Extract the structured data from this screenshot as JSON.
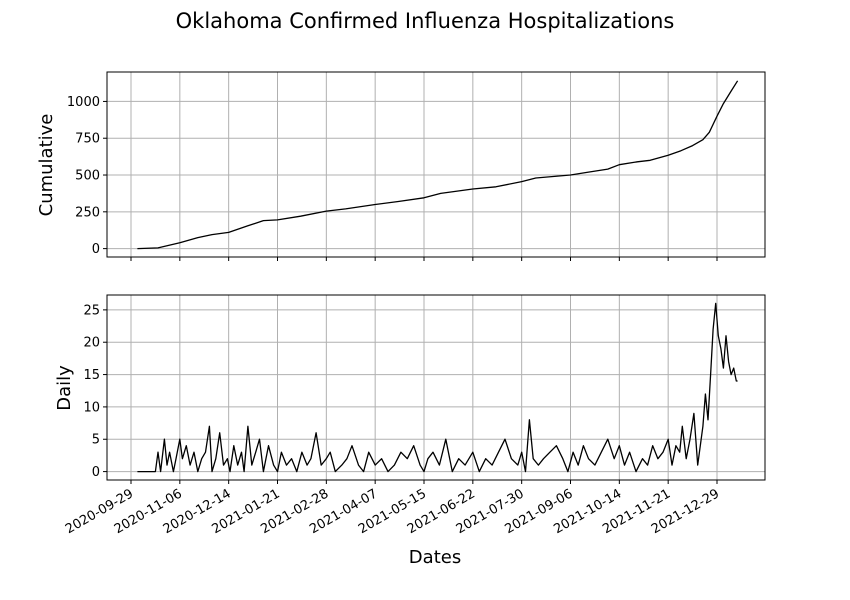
{
  "chart_data": {
    "title": "Oklahoma Confirmed Influenza Hospitalizations",
    "xlabel": "Dates",
    "x_ticks": [
      "2020-09-29",
      "2020-11-06",
      "2020-12-14",
      "2021-01-21",
      "2021-02-28",
      "2021-04-07",
      "2021-05-15",
      "2021-06-22",
      "2021-07-30",
      "2021-09-06",
      "2021-10-14",
      "2021-11-21",
      "2021-12-29"
    ],
    "grid": true,
    "panels": [
      {
        "type": "line",
        "ylabel": "Cumulative",
        "y_ticks": [
          0,
          250,
          500,
          750,
          1000
        ],
        "ylim": [
          -57,
          1200
        ],
        "series": [
          {
            "x": [
              "2020-10-04",
              "2020-10-20",
              "2020-11-06",
              "2020-11-20",
              "2020-12-01",
              "2020-12-14",
              "2020-12-29",
              "2021-01-10",
              "2021-01-21",
              "2021-02-08",
              "2021-02-28",
              "2021-03-15",
              "2021-04-07",
              "2021-04-25",
              "2021-05-15",
              "2021-05-28",
              "2021-06-22",
              "2021-07-10",
              "2021-07-30",
              "2021-08-10",
              "2021-09-06",
              "2021-09-20",
              "2021-10-05",
              "2021-10-14",
              "2021-10-28",
              "2021-11-07",
              "2021-11-21",
              "2021-12-01",
              "2021-12-10",
              "2021-12-18",
              "2021-12-23",
              "2021-12-29",
              "2022-01-03",
              "2022-01-09",
              "2022-01-14"
            ],
            "y": [
              0,
              5,
              40,
              75,
              95,
              110,
              155,
              190,
              195,
              220,
              255,
              270,
              300,
              320,
              345,
              375,
              405,
              420,
              455,
              480,
              500,
              520,
              540,
              570,
              590,
              600,
              635,
              665,
              700,
              740,
              790,
              900,
              985,
              1070,
              1140
            ]
          }
        ]
      },
      {
        "type": "line",
        "ylabel": "Daily",
        "y_ticks": [
          0,
          5,
          10,
          15,
          20,
          25
        ],
        "ylim": [
          -1.3,
          27.3
        ],
        "series": [
          {
            "x": [
              "2020-10-04",
              "2020-10-10",
              "2020-10-18",
              "2020-10-20",
              "2020-10-22",
              "2020-10-25",
              "2020-10-27",
              "2020-10-29",
              "2020-11-01",
              "2020-11-03",
              "2020-11-06",
              "2020-11-08",
              "2020-11-11",
              "2020-11-14",
              "2020-11-17",
              "2020-11-20",
              "2020-11-23",
              "2020-11-26",
              "2020-11-29",
              "2020-12-01",
              "2020-12-04",
              "2020-12-07",
              "2020-12-10",
              "2020-12-13",
              "2020-12-15",
              "2020-12-18",
              "2020-12-21",
              "2020-12-24",
              "2020-12-26",
              "2020-12-29",
              "2021-01-01",
              "2021-01-04",
              "2021-01-07",
              "2021-01-10",
              "2021-01-14",
              "2021-01-18",
              "2021-01-21",
              "2021-01-24",
              "2021-01-28",
              "2021-02-01",
              "2021-02-05",
              "2021-02-09",
              "2021-02-13",
              "2021-02-16",
              "2021-02-20",
              "2021-02-24",
              "2021-02-28",
              "2021-03-03",
              "2021-03-07",
              "2021-03-12",
              "2021-03-16",
              "2021-03-20",
              "2021-03-25",
              "2021-03-29",
              "2021-04-02",
              "2021-04-07",
              "2021-04-12",
              "2021-04-17",
              "2021-04-22",
              "2021-04-27",
              "2021-05-02",
              "2021-05-07",
              "2021-05-12",
              "2021-05-15",
              "2021-05-18",
              "2021-05-22",
              "2021-05-27",
              "2021-06-01",
              "2021-06-06",
              "2021-06-11",
              "2021-06-16",
              "2021-06-22",
              "2021-06-27",
              "2021-07-02",
              "2021-07-07",
              "2021-07-12",
              "2021-07-17",
              "2021-07-22",
              "2021-07-27",
              "2021-07-30",
              "2021-08-02",
              "2021-08-05",
              "2021-08-08",
              "2021-08-12",
              "2021-08-16",
              "2021-08-21",
              "2021-08-26",
              "2021-08-31",
              "2021-09-04",
              "2021-09-08",
              "2021-09-12",
              "2021-09-16",
              "2021-09-20",
              "2021-09-25",
              "2021-09-30",
              "2021-10-05",
              "2021-10-10",
              "2021-10-14",
              "2021-10-18",
              "2021-10-22",
              "2021-10-27",
              "2021-11-01",
              "2021-11-05",
              "2021-11-09",
              "2021-11-13",
              "2021-11-17",
              "2021-11-21",
              "2021-11-24",
              "2021-11-27",
              "2021-11-30",
              "2021-12-02",
              "2021-12-05",
              "2021-12-08",
              "2021-12-11",
              "2021-12-14",
              "2021-12-16",
              "2021-12-18",
              "2021-12-20",
              "2021-12-22",
              "2021-12-24",
              "2021-12-26",
              "2021-12-28",
              "2021-12-30",
              "2022-01-01",
              "2022-01-03",
              "2022-01-05",
              "2022-01-07",
              "2022-01-09",
              "2022-01-11",
              "2022-01-13",
              "2022-01-14"
            ],
            "y": [
              0,
              0,
              0,
              3,
              0,
              5,
              1,
              3,
              0,
              2,
              5,
              2,
              4,
              1,
              3,
              0,
              2,
              3,
              7,
              0,
              2,
              6,
              1,
              2,
              0,
              4,
              1,
              3,
              0,
              7,
              1,
              3,
              5,
              0,
              4,
              1,
              0,
              3,
              1,
              2,
              0,
              3,
              1,
              2,
              6,
              1,
              2,
              3,
              0,
              1,
              2,
              4,
              1,
              0,
              3,
              1,
              2,
              0,
              1,
              3,
              2,
              4,
              1,
              0,
              2,
              3,
              1,
              5,
              0,
              2,
              1,
              3,
              0,
              2,
              1,
              3,
              5,
              2,
              1,
              3,
              0,
              8,
              2,
              1,
              2,
              3,
              4,
              2,
              0,
              3,
              1,
              4,
              2,
              1,
              3,
              5,
              2,
              4,
              1,
              3,
              0,
              2,
              1,
              4,
              2,
              3,
              5,
              1,
              4,
              3,
              7,
              2,
              5,
              9,
              1,
              4,
              7,
              12,
              8,
              15,
              22,
              26,
              21,
              19,
              16,
              21,
              17,
              15,
              16,
              14,
              14
            ]
          }
        ]
      }
    ]
  }
}
